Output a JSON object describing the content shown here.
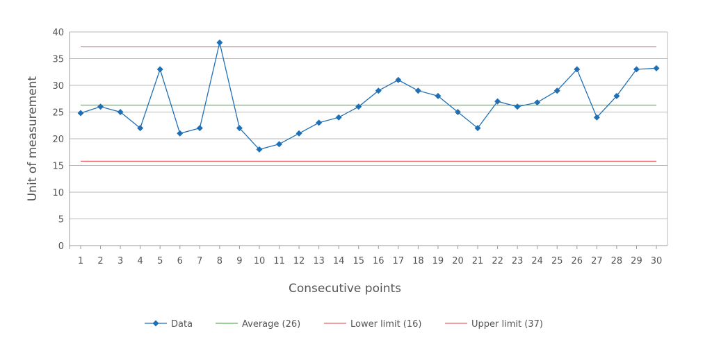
{
  "chart_data": {
    "type": "line",
    "title": "",
    "xlabel": "Consecutive points",
    "ylabel": "Unit of measurement",
    "ylim": [
      0,
      40
    ],
    "yticks": [
      0,
      5,
      10,
      15,
      20,
      25,
      30,
      35,
      40
    ],
    "x": [
      1,
      2,
      3,
      4,
      5,
      6,
      7,
      8,
      9,
      10,
      11,
      12,
      13,
      14,
      15,
      16,
      17,
      18,
      19,
      20,
      21,
      22,
      23,
      24,
      25,
      26,
      27,
      28,
      29,
      30
    ],
    "grid": true,
    "legend_position": "bottom",
    "series": [
      {
        "name": "Data",
        "color": "#1f6fb5",
        "marker": "diamond",
        "values": [
          24.8,
          26,
          25,
          22,
          33,
          21,
          22,
          38,
          22,
          18,
          19,
          21,
          23,
          24,
          26,
          29,
          31,
          29,
          28,
          25,
          22,
          27,
          26,
          26.8,
          29,
          33,
          24,
          28,
          33,
          33.2
        ]
      }
    ],
    "reference_lines": [
      {
        "name": "Average (26)",
        "value": 26.3,
        "color": "#5cb85c"
      },
      {
        "name": "Lower limit (16)",
        "value": 15.8,
        "color": "#e8646a"
      },
      {
        "name": "Upper limit (37)",
        "value": 37.2,
        "color": "#e8646a"
      }
    ]
  }
}
